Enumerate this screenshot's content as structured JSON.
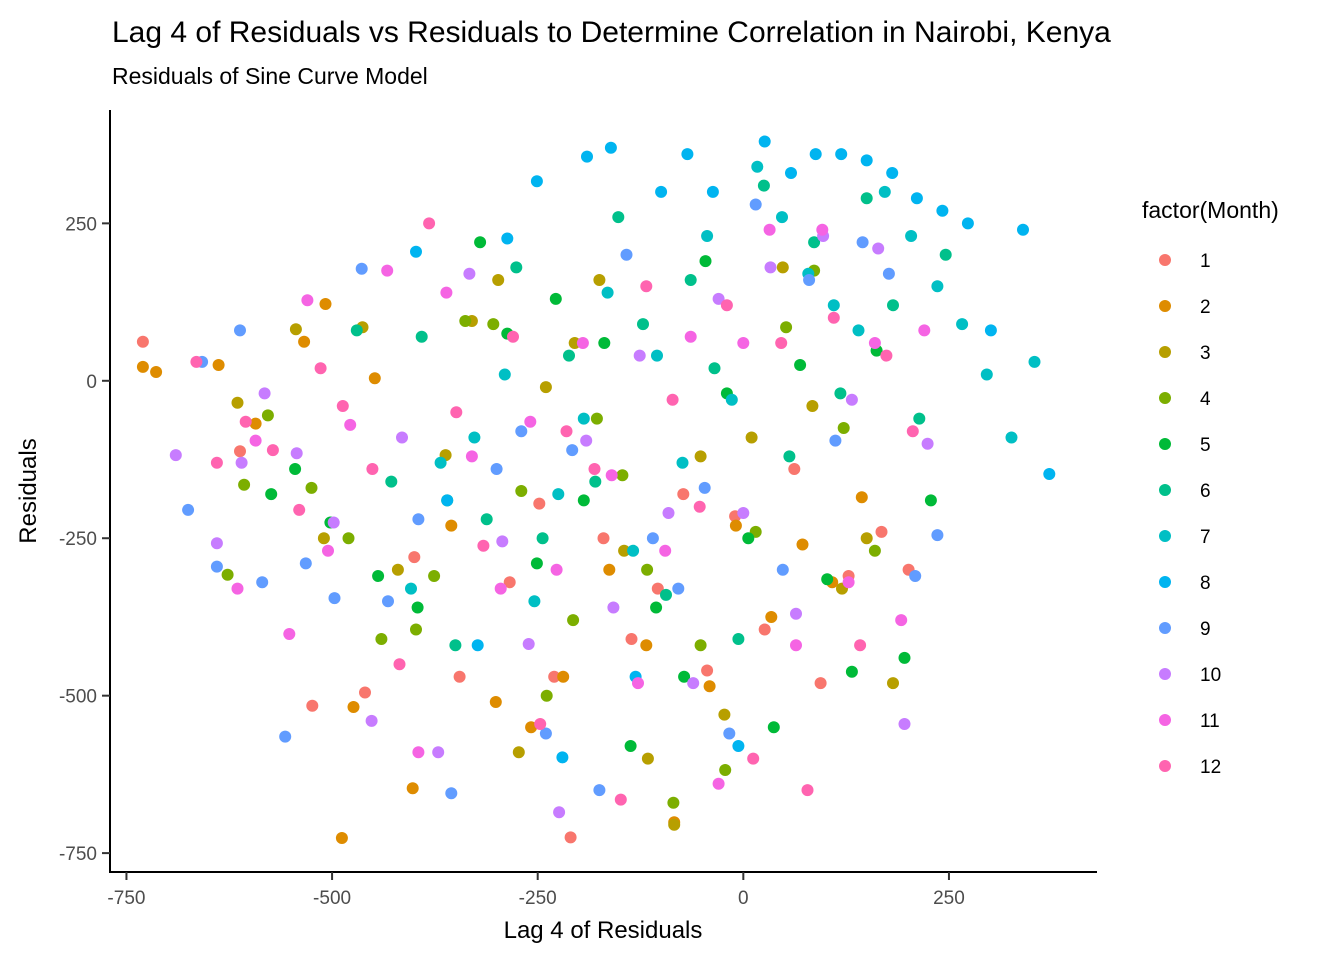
{
  "chart_data": {
    "type": "scatter",
    "title": "Lag 4 of Residuals vs Residuals to Determine Correlation in Nairobi, Kenya",
    "subtitle": "Residuals of Sine Curve Model",
    "xlabel": "Lag 4 of Residuals",
    "ylabel": "Residuals",
    "xlim": [
      -770,
      430
    ],
    "ylim": [
      -780,
      430
    ],
    "x_ticks": [
      -750,
      -500,
      -250,
      0,
      250
    ],
    "y_ticks": [
      -750,
      -500,
      -250,
      0,
      250
    ],
    "x_tick_labels": [
      "-750",
      "-500",
      "-250",
      "0",
      "250"
    ],
    "y_tick_labels": [
      "-750",
      "-500",
      "-250",
      "0",
      "250"
    ],
    "grid": false,
    "legend": {
      "title": "factor(Month)",
      "placement": "right",
      "entries": [
        "1",
        "2",
        "3",
        "4",
        "5",
        "6",
        "7",
        "8",
        "9",
        "10",
        "11",
        "12"
      ],
      "colors": [
        "#F8766D",
        "#DE8C00",
        "#B79F00",
        "#7CAE00",
        "#00BA38",
        "#00C08B",
        "#00BFC4",
        "#00B4F0",
        "#619CFF",
        "#C77CFF",
        "#F564E3",
        "#FF64B0"
      ]
    },
    "series": [
      {
        "name": "1",
        "x": [
          -730,
          -612,
          -524,
          -460,
          -400,
          -345,
          -284,
          -248,
          -230,
          -210,
          -170,
          -136,
          -104,
          -73,
          -44,
          -10,
          26,
          62,
          94,
          128,
          168,
          201
        ],
        "y": [
          62,
          -112,
          -516,
          -495,
          -280,
          -470,
          -320,
          -195,
          -470,
          -725,
          -250,
          -410,
          -330,
          -180,
          -460,
          -215,
          -395,
          -140,
          -480,
          -310,
          -240,
          -300
        ]
      },
      {
        "name": "2",
        "x": [
          -730,
          -714,
          -638,
          -593,
          -534,
          -508,
          -488,
          -474,
          -448,
          -402,
          -355,
          -301,
          -258,
          -219,
          -163,
          -118,
          -84,
          -41,
          -9,
          34,
          72,
          108,
          144
        ],
        "y": [
          22,
          14,
          25,
          -68,
          62,
          122,
          -726,
          -518,
          4,
          -647,
          -230,
          -510,
          -550,
          -470,
          -300,
          -420,
          -701,
          -485,
          -230,
          -375,
          -260,
          -320,
          -185
        ]
      },
      {
        "name": "3",
        "x": [
          -615,
          -544,
          -510,
          -463,
          -420,
          -362,
          -330,
          -298,
          -273,
          -240,
          -205,
          -175,
          -145,
          -116,
          -84,
          -52,
          -23,
          10,
          48,
          84,
          120,
          150,
          182
        ],
        "y": [
          -35,
          82,
          -250,
          85,
          -300,
          -118,
          95,
          160,
          -590,
          -10,
          60,
          160,
          -270,
          -600,
          -705,
          -120,
          -530,
          -90,
          180,
          -40,
          -330,
          -250,
          -480
        ]
      },
      {
        "name": "4",
        "x": [
          -627,
          -607,
          -578,
          -525,
          -480,
          -440,
          -398,
          -376,
          -338,
          -304,
          -270,
          -239,
          -207,
          -178,
          -147,
          -117,
          -85,
          -52,
          -22,
          15,
          52,
          86,
          122,
          160
        ],
        "y": [
          -308,
          -165,
          -55,
          -170,
          -250,
          -410,
          -395,
          -310,
          95,
          90,
          -175,
          -500,
          -380,
          -60,
          -150,
          -300,
          -670,
          -420,
          -618,
          -240,
          85,
          175,
          -75,
          -270
        ]
      },
      {
        "name": "5",
        "x": [
          -574,
          -545,
          -502,
          -444,
          -396,
          -360,
          -320,
          -287,
          -251,
          -228,
          -194,
          -169,
          -137,
          -106,
          -72,
          -46,
          -20,
          6,
          37,
          69,
          102,
          132,
          162,
          196,
          228
        ],
        "y": [
          -180,
          -140,
          -225,
          -310,
          -360,
          -190,
          220,
          75,
          -290,
          130,
          -190,
          60,
          -580,
          -360,
          -470,
          190,
          -20,
          -250,
          -550,
          25,
          -315,
          -462,
          48,
          -440,
          -190
        ]
      },
      {
        "name": "6",
        "x": [
          -470,
          -428,
          -391,
          -350,
          -312,
          -276,
          -244,
          -212,
          -180,
          -152,
          -122,
          -94,
          -64,
          -35,
          -6,
          25,
          56,
          86,
          118,
          150,
          182,
          214,
          246
        ],
        "y": [
          80,
          -160,
          70,
          -420,
          -220,
          180,
          -250,
          40,
          -160,
          260,
          90,
          -340,
          160,
          20,
          -410,
          310,
          -120,
          220,
          -20,
          290,
          120,
          -60,
          200
        ]
      },
      {
        "name": "7",
        "x": [
          -404,
          -368,
          -327,
          -290,
          -254,
          -225,
          -194,
          -165,
          -134,
          -105,
          -74,
          -44,
          -14,
          17,
          47,
          79,
          110,
          140,
          172,
          204,
          236,
          266,
          296,
          326,
          354
        ],
        "y": [
          -330,
          -130,
          -90,
          10,
          -350,
          -180,
          -60,
          140,
          -270,
          40,
          -130,
          230,
          -30,
          340,
          260,
          170,
          120,
          80,
          300,
          230,
          150,
          90,
          10,
          -90,
          30
        ]
      },
      {
        "name": "8",
        "x": [
          -398,
          -360,
          -323,
          -287,
          -251,
          -220,
          -190,
          -161,
          -131,
          -100,
          -68,
          -37,
          -6,
          26,
          58,
          88,
          119,
          150,
          181,
          211,
          242,
          273,
          301,
          340,
          372
        ],
        "y": [
          205,
          -190,
          -420,
          226,
          317,
          -598,
          356,
          370,
          -470,
          300,
          360,
          300,
          -580,
          380,
          330,
          360,
          360,
          350,
          330,
          290,
          270,
          250,
          80,
          240,
          -148
        ]
      },
      {
        "name": "9",
        "x": [
          -675,
          -658,
          -640,
          -612,
          -585,
          -557,
          -532,
          -497,
          -464,
          -432,
          -395,
          -355,
          -300,
          -270,
          -240,
          -208,
          -175,
          -142,
          -110,
          -79,
          -47,
          -17,
          15,
          48,
          80,
          112,
          145,
          177,
          209,
          236
        ],
        "y": [
          -205,
          30,
          -295,
          80,
          -320,
          -565,
          -290,
          -345,
          178,
          -350,
          -220,
          -655,
          -140,
          -80,
          -560,
          -110,
          -650,
          200,
          -250,
          -330,
          -170,
          -560,
          280,
          -300,
          160,
          -95,
          220,
          170,
          -310,
          -245
        ]
      },
      {
        "name": "10",
        "x": [
          -690,
          -640,
          -610,
          -582,
          -543,
          -498,
          -452,
          -415,
          -371,
          -333,
          -293,
          -261,
          -224,
          -191,
          -158,
          -126,
          -91,
          -61,
          -30,
          0,
          33,
          64,
          97,
          132,
          164,
          196,
          224
        ],
        "y": [
          -118,
          -258,
          -130,
          -20,
          -115,
          -225,
          -540,
          -90,
          -590,
          170,
          -255,
          -418,
          -685,
          -95,
          -360,
          40,
          -210,
          -480,
          130,
          -210,
          180,
          -370,
          230,
          -30,
          210,
          -545,
          -100
        ]
      },
      {
        "name": "11",
        "x": [
          -615,
          -593,
          -552,
          -530,
          -505,
          -478,
          -433,
          -395,
          -361,
          -330,
          -295,
          -259,
          -227,
          -195,
          -160,
          -128,
          -95,
          -64,
          -30,
          0,
          32,
          64,
          96,
          128,
          160,
          192,
          220
        ],
        "y": [
          -330,
          -95,
          -402,
          128,
          -270,
          -70,
          175,
          -590,
          140,
          -120,
          -330,
          -65,
          -300,
          60,
          -150,
          -480,
          -270,
          70,
          -640,
          60,
          240,
          -420,
          240,
          -320,
          60,
          -380,
          80
        ]
      },
      {
        "name": "12",
        "x": [
          -665,
          -640,
          -605,
          -572,
          -540,
          -514,
          -487,
          -451,
          -418,
          -382,
          -349,
          -316,
          -280,
          -247,
          -215,
          -181,
          -149,
          -118,
          -86,
          -53,
          -20,
          12,
          46,
          78,
          110,
          142,
          174,
          206
        ],
        "y": [
          30,
          -130,
          -65,
          -110,
          -205,
          20,
          -40,
          -140,
          -450,
          250,
          -50,
          -262,
          70,
          -545,
          -80,
          -140,
          -665,
          150,
          -30,
          -200,
          120,
          -600,
          60,
          -650,
          100,
          -420,
          40,
          -80
        ]
      }
    ]
  }
}
